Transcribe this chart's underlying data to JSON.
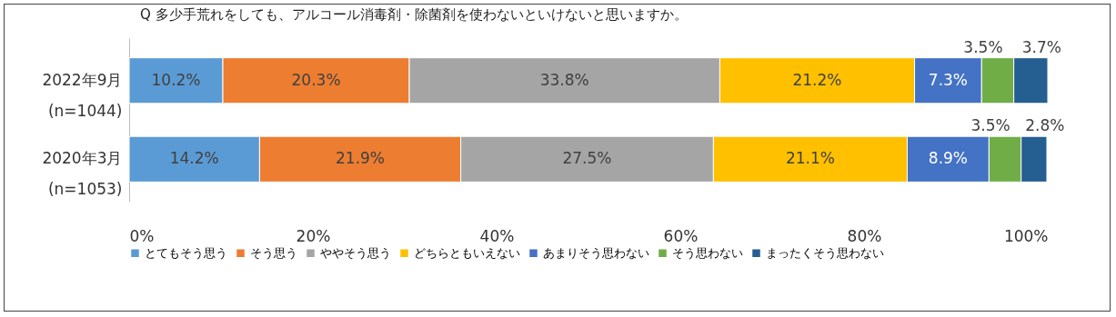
{
  "chart_data": {
    "type": "bar",
    "orientation": "horizontal",
    "stacked": true,
    "title": "Q 多少手荒れをしても、アルコール消毒剤・除菌剤を使わないといけないと思いますか。",
    "categories": [
      "2022年9月\n(n=1044)",
      "2020年3月\n(n=1053)"
    ],
    "series": [
      {
        "name": "とてもそう思う",
        "color": "#5b9bd5",
        "values": [
          10.2,
          14.2
        ],
        "value_labels": [
          "10.2%",
          "14.2%"
        ]
      },
      {
        "name": "そう思う",
        "color": "#ed7d31",
        "values": [
          20.3,
          21.9
        ],
        "value_labels": [
          "20.3%",
          "21.9%"
        ]
      },
      {
        "name": "ややそう思う",
        "color": "#a5a5a5",
        "values": [
          33.8,
          27.5
        ],
        "value_labels": [
          "33.8%",
          "27.5%"
        ]
      },
      {
        "name": "どちらともいえない",
        "color": "#ffc000",
        "values": [
          21.2,
          21.1
        ],
        "value_labels": [
          "21.2%",
          "21.1%"
        ]
      },
      {
        "name": "あまりそう思わない",
        "color": "#4472c4",
        "values": [
          7.3,
          8.9
        ],
        "value_labels": [
          "7.3%",
          "8.9%"
        ]
      },
      {
        "name": "そう思わない",
        "color": "#70ad47",
        "values": [
          3.5,
          3.5
        ],
        "value_labels": [
          "3.5%",
          "3.5%"
        ]
      },
      {
        "name": "まったくそう思わない",
        "color": "#255e91",
        "values": [
          3.7,
          2.8
        ],
        "value_labels": [
          "3.7%",
          "2.8%"
        ]
      }
    ],
    "xlim": [
      0,
      100
    ],
    "xticks": [
      {
        "value": 0,
        "label": "0%"
      },
      {
        "value": 20,
        "label": "20%"
      },
      {
        "value": 40,
        "label": "40%"
      },
      {
        "value": 60,
        "label": "60%"
      },
      {
        "value": 80,
        "label": "80%"
      },
      {
        "value": 100,
        "label": "100%"
      }
    ],
    "legend": "bottom",
    "grid": false
  }
}
